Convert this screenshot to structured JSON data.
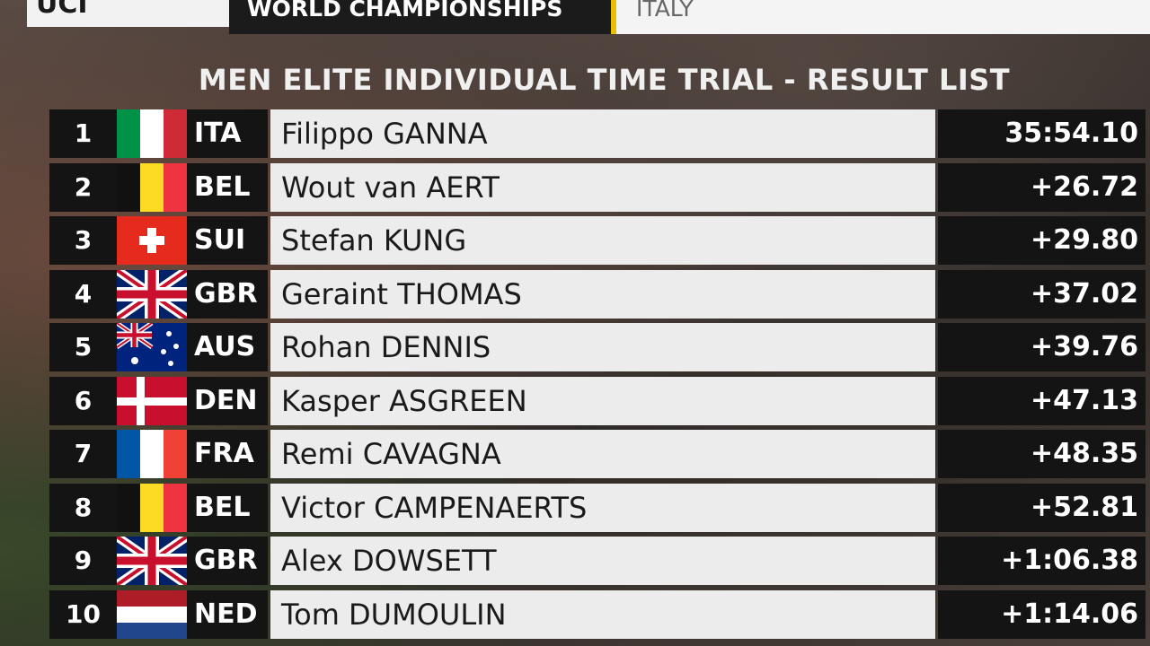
{
  "header": {
    "logo": "UCI",
    "event": "WORLD CHAMPIONSHIPS",
    "location": "ITALY"
  },
  "title": "MEN ELITE INDIVIDUAL TIME TRIAL - RESULT LIST",
  "table": {
    "rows": [
      [
        "1",
        "ITA",
        "Filippo GANNA",
        "35:54.10"
      ],
      [
        "2",
        "BEL",
        "Wout van AERT",
        "+26.72"
      ],
      [
        "3",
        "SUI",
        "Stefan KUNG",
        "+29.80"
      ],
      [
        "4",
        "GBR",
        "Geraint THOMAS",
        "+37.02"
      ],
      [
        "5",
        "AUS",
        "Rohan DENNIS",
        "+39.76"
      ],
      [
        "6",
        "DEN",
        "Kasper ASGREEN",
        "+47.13"
      ],
      [
        "7",
        "FRA",
        "Remi CAVAGNA",
        "+48.35"
      ],
      [
        "8",
        "BEL",
        "Victor CAMPENAERTS",
        "+52.81"
      ],
      [
        "9",
        "GBR",
        "Alex DOWSETT",
        "+1:06.38"
      ],
      [
        "10",
        "NED",
        "Tom DUMOULIN",
        "+1:14.06"
      ]
    ]
  }
}
